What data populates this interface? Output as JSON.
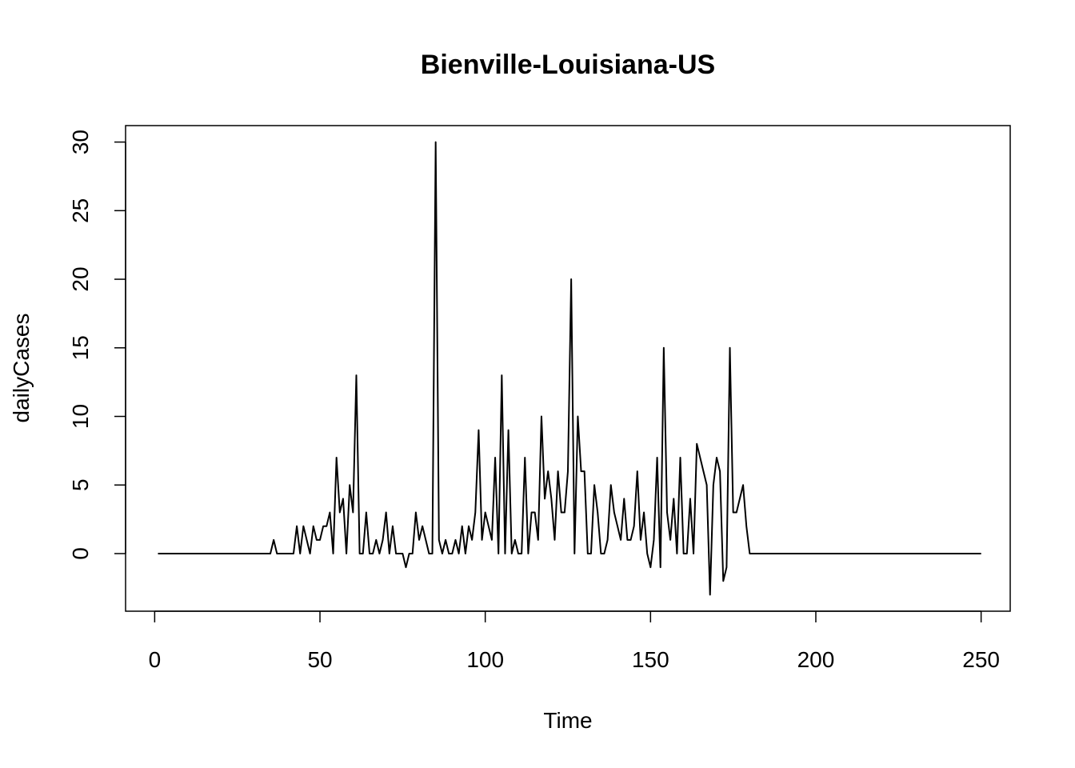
{
  "chart_data": {
    "type": "line",
    "title": "Bienville-Louisiana-US",
    "xlabel": "Time",
    "ylabel": "dailyCases",
    "xlim": [
      -8.8,
      258.8
    ],
    "ylim": [
      -4.2,
      31.2
    ],
    "x_ticks": [
      0,
      50,
      100,
      150,
      200,
      250
    ],
    "x_tick_labels": [
      "0",
      "50",
      "100",
      "150",
      "200",
      "250"
    ],
    "y_ticks": [
      0,
      5,
      10,
      15,
      20,
      25,
      30
    ],
    "y_tick_labels": [
      "0",
      "5",
      "10",
      "15",
      "20",
      "25",
      "30"
    ],
    "grid": false,
    "legend": "none",
    "line_color": "#000000",
    "series": [
      {
        "x_start": 1,
        "values": [
          0,
          0,
          0,
          0,
          0,
          0,
          0,
          0,
          0,
          0,
          0,
          0,
          0,
          0,
          0,
          0,
          0,
          0,
          0,
          0,
          0,
          0,
          0,
          0,
          0,
          0,
          0,
          0,
          0,
          0,
          0,
          0,
          0,
          0,
          0,
          1,
          0,
          0,
          0,
          0,
          0,
          0,
          2,
          0,
          2,
          1,
          0,
          2,
          1,
          1,
          2,
          2,
          3,
          0,
          7,
          3,
          4,
          0,
          5,
          3,
          13,
          0,
          0,
          3,
          0,
          0,
          1,
          0,
          1,
          3,
          0,
          2,
          0,
          0,
          0,
          -1,
          0,
          0,
          3,
          1,
          2,
          1,
          0,
          0,
          30,
          1,
          0,
          1,
          0,
          0,
          1,
          0,
          2,
          0,
          2,
          1,
          3,
          9,
          1,
          3,
          2,
          1,
          7,
          0,
          13,
          0,
          9,
          0,
          1,
          0,
          0,
          7,
          0,
          3,
          3,
          1,
          10,
          4,
          6,
          4,
          1,
          6,
          3,
          3,
          6,
          20,
          0,
          10,
          6,
          6,
          0,
          0,
          5,
          3,
          0,
          0,
          1,
          5,
          3,
          2,
          1,
          4,
          1,
          1,
          2,
          6,
          1,
          3,
          0,
          -1,
          1,
          7,
          -1,
          15,
          3,
          1,
          4,
          0,
          7,
          0,
          0,
          4,
          0,
          8,
          7,
          6,
          5,
          -3,
          5,
          7,
          6,
          -2,
          -1,
          15,
          3,
          3,
          4,
          5,
          2,
          0,
          0,
          0,
          0,
          0,
          0,
          0,
          0,
          0,
          0,
          0,
          0,
          0,
          0,
          0,
          0,
          0,
          0,
          0,
          0,
          0,
          0,
          0,
          0,
          0,
          0,
          0,
          0,
          0,
          0,
          0,
          0,
          0,
          0,
          0,
          0,
          0,
          0,
          0,
          0,
          0,
          0,
          0,
          0,
          0,
          0,
          0,
          0,
          0,
          0,
          0,
          0,
          0,
          0,
          0,
          0,
          0,
          0,
          0,
          0,
          0,
          0,
          0,
          0,
          0,
          0,
          0,
          0,
          0,
          0,
          0
        ]
      }
    ]
  }
}
